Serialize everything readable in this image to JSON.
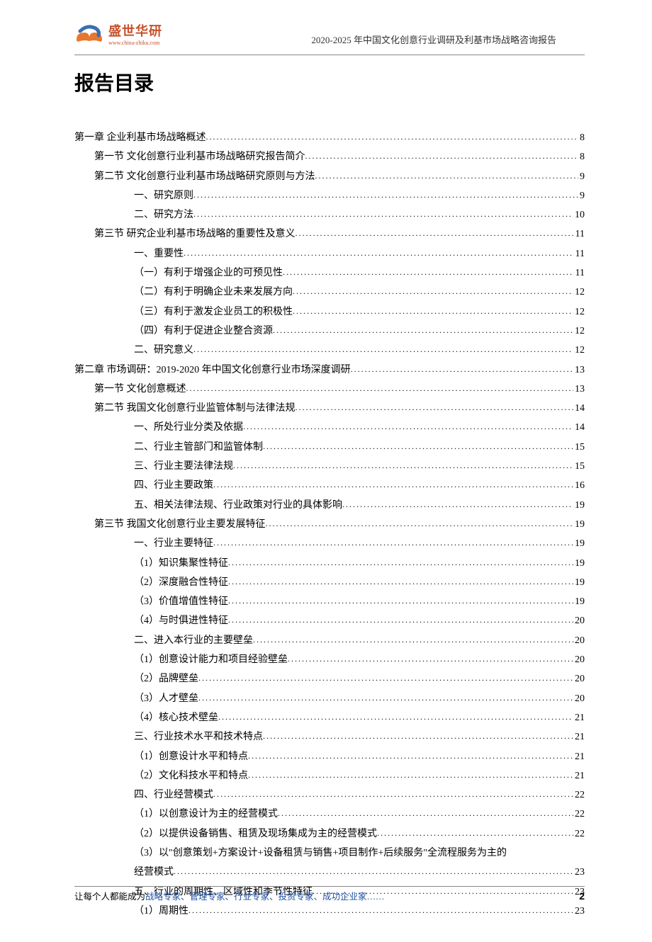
{
  "header": {
    "logo_main": "盛世华研",
    "logo_sub": "www.china-zhiku.com",
    "title": "2020-2025 年中国文化创意行业调研及利基市场战略咨询报告"
  },
  "main_title": "报告目录",
  "toc": [
    {
      "indent": 0,
      "label": "第一章 企业利基市场战略概述",
      "page": "8"
    },
    {
      "indent": 1,
      "label": "第一节 文化创意行业利基市场战略研究报告简介",
      "page": "8"
    },
    {
      "indent": 1,
      "label": "第二节 文化创意行业利基市场战略研究原则与方法",
      "page": "9"
    },
    {
      "indent": 2,
      "label": "一、研究原则",
      "page": "9"
    },
    {
      "indent": 2,
      "label": "二、研究方法",
      "page": "10"
    },
    {
      "indent": 1,
      "label": "第三节 研究企业利基市场战略的重要性及意义",
      "page": "11"
    },
    {
      "indent": 2,
      "label": "一、重要性",
      "page": "11"
    },
    {
      "indent": 3,
      "label": "（一）有利于增强企业的可预见性",
      "page": "11"
    },
    {
      "indent": 3,
      "label": "（二）有利于明确企业未来发展方向",
      "page": "12"
    },
    {
      "indent": 3,
      "label": "（三）有利于激发企业员工的积极性",
      "page": "12"
    },
    {
      "indent": 3,
      "label": "（四）有利于促进企业整合资源",
      "page": "12"
    },
    {
      "indent": 2,
      "label": "二、研究意义",
      "page": "12"
    },
    {
      "indent": 0,
      "label": "第二章 市场调研：2019-2020 年中国文化创意行业市场深度调研",
      "page": "13"
    },
    {
      "indent": 1,
      "label": "第一节 文化创意概述",
      "page": "13"
    },
    {
      "indent": 1,
      "label": "第二节 我国文化创意行业监管体制与法律法规",
      "page": "14"
    },
    {
      "indent": 2,
      "label": "一、所处行业分类及依据",
      "page": "14"
    },
    {
      "indent": 2,
      "label": "二、行业主管部门和监管体制",
      "page": "15"
    },
    {
      "indent": 2,
      "label": "三、行业主要法律法规",
      "page": "15"
    },
    {
      "indent": 2,
      "label": "四、行业主要政策",
      "page": "16"
    },
    {
      "indent": 2,
      "label": "五、相关法律法规、行业政策对行业的具体影响",
      "page": "19"
    },
    {
      "indent": 1,
      "label": "第三节 我国文化创意行业主要发展特征",
      "page": "19"
    },
    {
      "indent": 2,
      "label": "一、行业主要特征",
      "page": "19"
    },
    {
      "indent": 3,
      "label": "（1）知识集聚性特征",
      "page": "19"
    },
    {
      "indent": 3,
      "label": "（2）深度融合性特征",
      "page": "19"
    },
    {
      "indent": 3,
      "label": "（3）价值增值性特征",
      "page": "19"
    },
    {
      "indent": 3,
      "label": "（4）与时俱进性特征",
      "page": "20"
    },
    {
      "indent": 2,
      "label": "二、进入本行业的主要壁垒",
      "page": "20"
    },
    {
      "indent": 3,
      "label": "（1）创意设计能力和项目经验壁垒",
      "page": "20"
    },
    {
      "indent": 3,
      "label": "（2）品牌壁垒",
      "page": "20"
    },
    {
      "indent": 3,
      "label": "（3）人才壁垒",
      "page": "20"
    },
    {
      "indent": 3,
      "label": "（4）核心技术壁垒",
      "page": "21"
    },
    {
      "indent": 2,
      "label": "三、行业技术水平和技术特点",
      "page": "21"
    },
    {
      "indent": 3,
      "label": "（1）创意设计水平和特点",
      "page": "21"
    },
    {
      "indent": 3,
      "label": "（2）文化科技水平和特点",
      "page": "21"
    },
    {
      "indent": 2,
      "label": "四、行业经营模式",
      "page": "22"
    },
    {
      "indent": 3,
      "label": "（1）以创意设计为主的经营模式",
      "page": "22"
    },
    {
      "indent": 3,
      "label": "（2）以提供设备销售、租赁及现场集成为主的经营模式",
      "page": "22"
    }
  ],
  "toc_multiline": {
    "line1": "（3）以\"创意策划+方案设计+设备租赁与销售+项目制作+后续服务\"全流程服务为主的",
    "line2": "经营模式",
    "page": "23"
  },
  "toc_after": [
    {
      "indent": 2,
      "label": "五、行业的周期性、区域性和季节性特征",
      "page": "23"
    },
    {
      "indent": 3,
      "label": "（1）周期性",
      "page": "23"
    }
  ],
  "footer": {
    "text_black": "让每个人都能成为",
    "text_blue": "战略专家、管理专家、行业专家、投资专家、成功企业家……",
    "page_num": "2"
  },
  "colors": {
    "logo_orange": "#e8762d",
    "logo_blue": "#3a6fb0",
    "logo_text": "#c8502a",
    "footer_blue": "#2050a0"
  }
}
